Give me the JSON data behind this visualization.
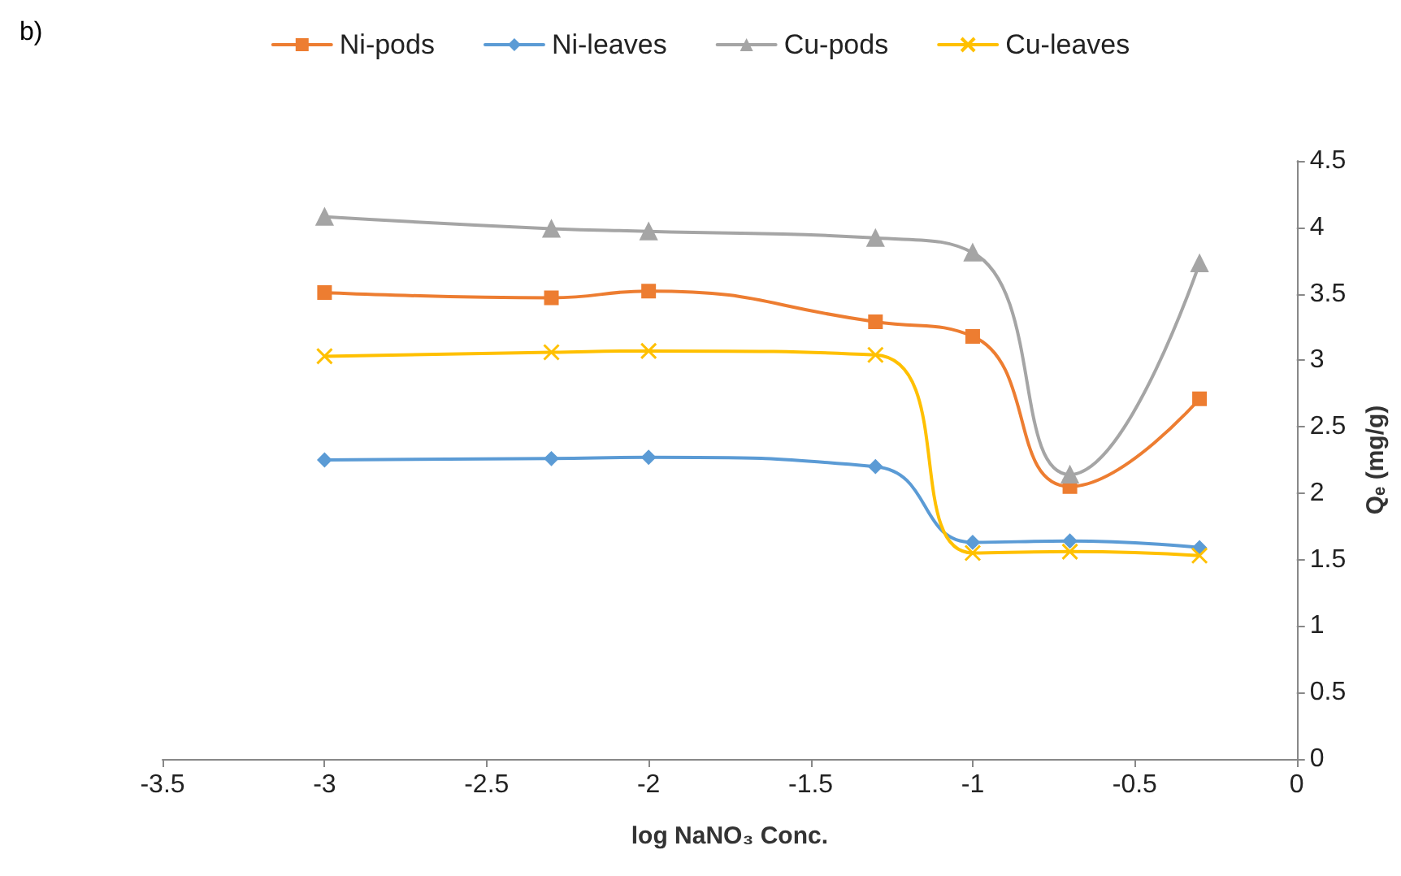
{
  "chart_data": {
    "type": "line",
    "xlabel": "log NaNO₃ Conc.",
    "ylabel": "Qₑ (mg/g)",
    "annotations": [
      "b)"
    ],
    "x": [
      -3,
      -2.3,
      -2,
      -1.3,
      -1,
      -0.7,
      -0.3
    ],
    "series": [
      {
        "name": "Ni-pods",
        "color": "#ed7d31",
        "marker": "square",
        "values": [
          3.51,
          3.47,
          3.52,
          3.29,
          3.18,
          2.05,
          2.71
        ]
      },
      {
        "name": "Ni-leaves",
        "color": "#5b9bd5",
        "marker": "diamond",
        "values": [
          2.25,
          2.26,
          2.27,
          2.2,
          1.63,
          1.64,
          1.59
        ]
      },
      {
        "name": "Cu-pods",
        "color": "#a5a5a5",
        "marker": "triangle",
        "values": [
          4.08,
          3.99,
          3.97,
          3.92,
          3.81,
          2.14,
          3.73
        ]
      },
      {
        "name": "Cu-leaves",
        "color": "#ffc000",
        "marker": "cross",
        "values": [
          3.03,
          3.06,
          3.07,
          3.04,
          1.55,
          1.56,
          1.53
        ]
      }
    ],
    "xlim": [
      -3.5,
      0
    ],
    "xticks": [
      -3.5,
      -3,
      -2.5,
      -2,
      -1.5,
      -1,
      -0.5,
      0
    ],
    "ylim": [
      0,
      4.5
    ],
    "yticks": [
      0,
      0.5,
      1,
      1.5,
      2,
      2.5,
      3,
      3.5,
      4,
      4.5
    ],
    "grid": false,
    "legend": "top"
  }
}
